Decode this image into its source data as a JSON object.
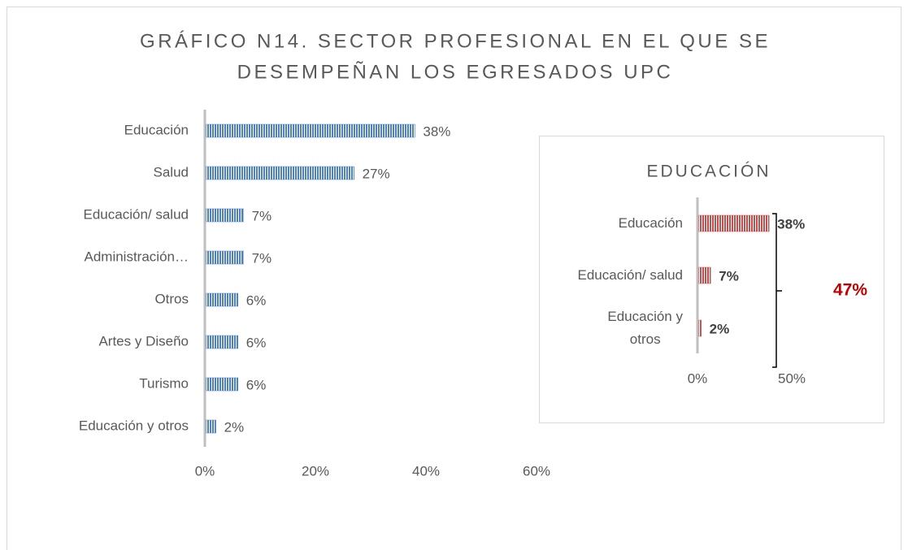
{
  "chart_data": [
    {
      "type": "hbar",
      "title": [
        "GRÁFICO N14. SECTOR PROFESIONAL EN EL QUE SE",
        "DESEMPEÑAN LOS EGRESADOS UPC"
      ],
      "categories": [
        "Educación",
        "Salud",
        "Educación/ salud",
        "Administración…",
        "Otros",
        "Artes y Diseño",
        "Turismo",
        "Educación y otros"
      ],
      "values": [
        38,
        27,
        7,
        7,
        6,
        6,
        6,
        2
      ],
      "value_labels": [
        "38%",
        "27%",
        "7%",
        "7%",
        "6%",
        "6%",
        "6%",
        "2%"
      ],
      "color": "#4f81bd",
      "xlim": [
        0,
        60
      ],
      "xticks": [
        {
          "value": 0,
          "label": "0%"
        },
        {
          "value": 20,
          "label": "20%"
        },
        {
          "value": 40,
          "label": "40%"
        },
        {
          "value": 60,
          "label": "60%"
        }
      ]
    },
    {
      "type": "hbar",
      "title": "EDUCACIÓN",
      "categories": [
        "Educación",
        "Educación/ salud",
        "Educación y\notros"
      ],
      "values": [
        38,
        7,
        2
      ],
      "value_labels": [
        "38%",
        "7%",
        "2%"
      ],
      "color": "#c0504d",
      "xlim": [
        0,
        50
      ],
      "xticks": [
        {
          "value": 0,
          "label": "0%"
        },
        {
          "value": 50,
          "label": "50%"
        }
      ],
      "annotation": "47%"
    }
  ]
}
